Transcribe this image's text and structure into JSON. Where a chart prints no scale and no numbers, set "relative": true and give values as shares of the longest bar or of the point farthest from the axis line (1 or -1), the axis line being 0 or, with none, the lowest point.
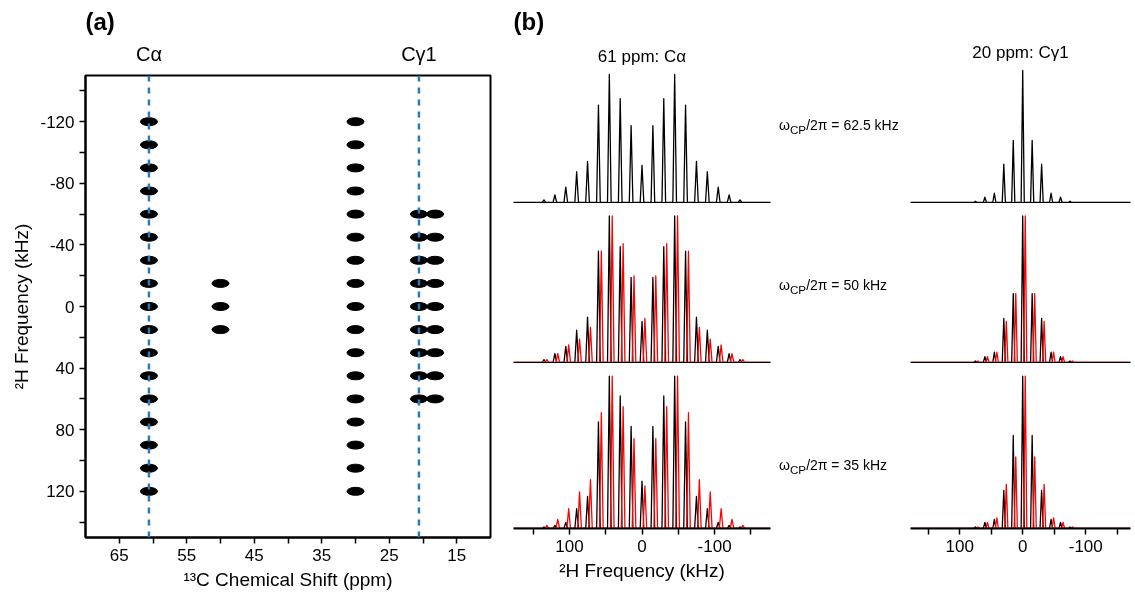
{
  "chart_data": [
    {
      "type": "scatter",
      "xlabel": "¹³C Chemical Shift (ppm)",
      "ylabel": "²H Frequency (kHz)",
      "annotations": [
        "(a)"
      ],
      "color": "#000000",
      "x": [
        60.6,
        60.6,
        60.6,
        60.6,
        60.6,
        60.6,
        60.6,
        60.6,
        60.6,
        60.6,
        60.6,
        60.6,
        60.6,
        60.6,
        60.6,
        60.6,
        60.6,
        50,
        50,
        50,
        30,
        30,
        30,
        30,
        30,
        30,
        30,
        30,
        30,
        30,
        30,
        30,
        30,
        30,
        30,
        30,
        30,
        20.6,
        20.6,
        20.6,
        20.6,
        20.6,
        20.6,
        20.6,
        20.6,
        20.6,
        18.2,
        18.2,
        18.2,
        18.2,
        18.2,
        18.2,
        18.2,
        18.2,
        18.2
      ],
      "values": [
        -120,
        -105,
        -90,
        -75,
        -60,
        -45,
        -30,
        -15,
        0,
        15,
        30,
        45,
        60,
        75,
        90,
        105,
        120,
        -15,
        0,
        15,
        -120,
        -105,
        -90,
        -75,
        -60,
        -45,
        -30,
        -15,
        0,
        15,
        30,
        45,
        60,
        75,
        90,
        105,
        120,
        -60,
        -45,
        -30,
        -15,
        0,
        15,
        30,
        45,
        60,
        -60,
        -45,
        -30,
        -15,
        0,
        15,
        30,
        45,
        60
      ],
      "xlim": [
        70,
        10
      ],
      "ylim": [
        150,
        -150
      ],
      "xticks": [
        65,
        {
          "value": 60,
          "label": null
        },
        55,
        {
          "value": 50,
          "label": null
        },
        45,
        {
          "value": 40,
          "label": null
        },
        35,
        {
          "value": 30,
          "label": null
        },
        25,
        {
          "value": 20,
          "label": null
        },
        15
      ],
      "yticks": [
        {
          "value": -140,
          "label": null
        },
        -120,
        {
          "value": -100,
          "label": null
        },
        -80,
        {
          "value": -60,
          "label": null
        },
        -40,
        {
          "value": -20,
          "label": null
        },
        0,
        {
          "value": 20,
          "label": null
        },
        40,
        {
          "value": 60,
          "label": null
        },
        80,
        {
          "value": 100,
          "label": null
        },
        120,
        {
          "value": 140,
          "label": null
        }
      ],
      "ref_lines": [
        {
          "axis": "x",
          "value": 60.6,
          "label": "Cα",
          "color": "#2b7bba",
          "line_style": "dashed"
        },
        {
          "axis": "x",
          "value": 20.6,
          "label": "Cγ1",
          "color": "#2b7bba",
          "line_style": "dashed"
        }
      ]
    },
    {
      "type": "line",
      "relative": true,
      "title": "61 ppm: Cα",
      "annotations": [
        "(b)",
        "ω$_{CP}$/2π = 62.5 kHz"
      ],
      "xlim": [
        177,
        -177
      ],
      "tick_labels": false,
      "series": [
        {
          "color": "#000000",
          "x": [
            177,
            137.5,
            135,
            132.5,
            122.5,
            120,
            117.5,
            107.5,
            105,
            102.5,
            92.5,
            90,
            87.5,
            77.5,
            75,
            72.5,
            62.5,
            60,
            57.5,
            47.5,
            45,
            42.5,
            32.5,
            30,
            27.5,
            17.5,
            15,
            12.5,
            2.5,
            0,
            -2.5,
            -12.5,
            -15,
            -17.5,
            -27.5,
            -30,
            -32.5,
            -42.5,
            -45,
            -47.5,
            -57.5,
            -60,
            -62.5,
            -72.5,
            -75,
            -77.5,
            -87.5,
            -90,
            -92.5,
            -102.5,
            -105,
            -107.5,
            -117.5,
            -120,
            -122.5,
            -132.5,
            -135,
            -137.5,
            -177
          ],
          "values": [
            0,
            0,
            0.02,
            0,
            0,
            0.06,
            0,
            0,
            0.12,
            0,
            0,
            0.24,
            0,
            0,
            0.32,
            0,
            0,
            0.76,
            0,
            0,
            1.0,
            0,
            0,
            0.81,
            0,
            0,
            0.6,
            0,
            0,
            0.29,
            0,
            0,
            0.6,
            0,
            0,
            0.81,
            0,
            0,
            1.0,
            0,
            0,
            0.76,
            0,
            0,
            0.32,
            0,
            0,
            0.24,
            0,
            0,
            0.12,
            0,
            0,
            0.06,
            0,
            0,
            0.02,
            0,
            0
          ]
        }
      ]
    },
    {
      "type": "line",
      "relative": true,
      "title": "20 ppm: Cγ1",
      "xlim": [
        178,
        -171
      ],
      "tick_labels": false,
      "series": [
        {
          "color": "#000000",
          "x": [
            178,
            77.5,
            75,
            72.5,
            62.5,
            60,
            57.5,
            47.5,
            45,
            42.5,
            32.5,
            30,
            27.5,
            17.5,
            15,
            12.5,
            2.5,
            0,
            -2.5,
            -12.5,
            -15,
            -17.5,
            -27.5,
            -30,
            -32.5,
            -42.5,
            -45,
            -47.5,
            -57.5,
            -60,
            -62.5,
            -72.5,
            -75,
            -77.5,
            -171
          ],
          "values": [
            0,
            0,
            0.01,
            0,
            0,
            0.04,
            0,
            0,
            0.07,
            0,
            0,
            0.29,
            0,
            0,
            0.47,
            0,
            0,
            1.0,
            0,
            0,
            0.47,
            0,
            0,
            0.29,
            0,
            0,
            0.07,
            0,
            0,
            0.04,
            0,
            0,
            0.01,
            0,
            0
          ]
        }
      ]
    },
    {
      "type": "line",
      "relative": true,
      "annotations": [
        "ω$_{CP}$/2π = 50 kHz"
      ],
      "xlim": [
        177,
        -177
      ],
      "tick_labels": false,
      "series": [
        {
          "color": "#000000",
          "x": [
            177,
            137.5,
            135,
            132.5,
            122.5,
            120,
            117.5,
            107.5,
            105,
            102.5,
            92.5,
            90,
            87.5,
            77.5,
            75,
            72.5,
            62.5,
            60,
            57.5,
            47.5,
            45,
            42.5,
            32.5,
            30,
            27.5,
            17.5,
            15,
            12.5,
            2.5,
            0,
            -2.5,
            -12.5,
            -15,
            -17.5,
            -27.5,
            -30,
            -32.5,
            -42.5,
            -45,
            -47.5,
            -57.5,
            -60,
            -62.5,
            -72.5,
            -75,
            -77.5,
            -87.5,
            -90,
            -92.5,
            -102.5,
            -105,
            -107.5,
            -117.5,
            -120,
            -122.5,
            -132.5,
            -135,
            -137.5,
            -177
          ],
          "values": [
            0,
            0,
            0.02,
            0,
            0,
            0.06,
            0,
            0,
            0.11,
            0,
            0,
            0.22,
            0,
            0,
            0.31,
            0,
            0,
            0.76,
            0,
            0,
            1.0,
            0,
            0,
            0.79,
            0,
            0,
            0.58,
            0,
            0,
            0.28,
            0,
            0,
            0.58,
            0,
            0,
            0.79,
            0,
            0,
            1.0,
            0,
            0,
            0.76,
            0,
            0,
            0.31,
            0,
            0,
            0.22,
            0,
            0,
            0.11,
            0,
            0,
            0.06,
            0,
            0,
            0.02,
            0,
            0
          ]
        },
        {
          "color": "#ff0000",
          "x": [
            177,
            133.5,
            131,
            128.5,
            118.5,
            116,
            113.5,
            103.5,
            101,
            98.5,
            88.5,
            86,
            83.5,
            73.5,
            71,
            68.5,
            58.5,
            56,
            53.5,
            43.5,
            41,
            38.5,
            28.5,
            26,
            23.5,
            13.5,
            11,
            8.5,
            -1.5,
            -4,
            -6.5,
            -16.5,
            -19,
            -21.5,
            -31.5,
            -34,
            -36.5,
            -46.5,
            -49,
            -51.5,
            -61.5,
            -64,
            -66.5,
            -76.5,
            -79,
            -81.5,
            -91.5,
            -94,
            -96.5,
            -106.5,
            -109,
            -111.5,
            -121.5,
            -124,
            -126.5,
            -136.5,
            -139,
            -141.5,
            -177
          ],
          "values": [
            0,
            0,
            0.02,
            0,
            0,
            0.06,
            0,
            0,
            0.12,
            0,
            0,
            0.16,
            0,
            0,
            0.24,
            0,
            0,
            0.76,
            0,
            0,
            1.0,
            0,
            0,
            0.81,
            0,
            0,
            0.59,
            0,
            0,
            0.3,
            0,
            0,
            0.59,
            0,
            0,
            0.81,
            0,
            0,
            1.0,
            0,
            0,
            0.76,
            0,
            0,
            0.24,
            0,
            0,
            0.16,
            0,
            0,
            0.12,
            0,
            0,
            0.06,
            0,
            0,
            0.02,
            0,
            0
          ]
        }
      ]
    },
    {
      "type": "line",
      "relative": true,
      "xlim": [
        178,
        -171
      ],
      "tick_labels": false,
      "series": [
        {
          "color": "#000000",
          "x": [
            178,
            77.5,
            75,
            72.5,
            62.5,
            60,
            57.5,
            47.5,
            45,
            42.5,
            32.5,
            30,
            27.5,
            17.5,
            15,
            12.5,
            2.5,
            0,
            -2.5,
            -12.5,
            -15,
            -17.5,
            -27.5,
            -30,
            -32.5,
            -42.5,
            -45,
            -47.5,
            -57.5,
            -60,
            -62.5,
            -72.5,
            -75,
            -77.5,
            -171
          ],
          "values": [
            0,
            0,
            0.01,
            0,
            0,
            0.04,
            0,
            0,
            0.07,
            0,
            0,
            0.3,
            0,
            0,
            0.47,
            0,
            0,
            1.0,
            0,
            0,
            0.47,
            0,
            0,
            0.3,
            0,
            0,
            0.07,
            0,
            0,
            0.04,
            0,
            0,
            0.01,
            0,
            0
          ]
        },
        {
          "color": "#ff0000",
          "x": [
            178,
            73.5,
            71,
            68.5,
            58.5,
            56,
            53.5,
            43.5,
            41,
            38.5,
            28.5,
            26,
            23.5,
            13.5,
            11,
            8.5,
            -1.5,
            -4,
            -6.5,
            -16.5,
            -19,
            -21.5,
            -31.5,
            -34,
            -36.5,
            -46.5,
            -49,
            -51.5,
            -61.5,
            -64,
            -66.5,
            -76.5,
            -79,
            -81.5,
            -171
          ],
          "values": [
            0,
            0,
            0.01,
            0,
            0,
            0.04,
            0,
            0,
            0.07,
            0,
            0,
            0.28,
            0,
            0,
            0.47,
            0,
            0,
            1.0,
            0,
            0,
            0.47,
            0,
            0,
            0.28,
            0,
            0,
            0.07,
            0,
            0,
            0.04,
            0,
            0,
            0.01,
            0,
            0
          ]
        }
      ]
    },
    {
      "type": "line",
      "relative": true,
      "annotations": [
        "ω$_{CP}$/2π = 35 kHz"
      ],
      "xlabel": "²H Frequency (kHz)",
      "xlim": [
        177,
        -177
      ],
      "xticks": [
        {
          "value": 150,
          "label": null
        },
        100,
        {
          "value": 50,
          "label": null
        },
        0,
        {
          "value": -50,
          "label": null
        },
        -100,
        {
          "value": -150,
          "label": null
        }
      ],
      "tick_labels": "x",
      "series": [
        {
          "color": "#000000",
          "x": [
            177,
            137.5,
            135,
            132.5,
            122.5,
            120,
            117.5,
            107.5,
            105,
            102.5,
            92.5,
            90,
            87.5,
            77.5,
            75,
            72.5,
            62.5,
            60,
            57.5,
            47.5,
            45,
            42.5,
            32.5,
            30,
            27.5,
            17.5,
            15,
            12.5,
            2.5,
            0,
            -2.5,
            -12.5,
            -15,
            -17.5,
            -27.5,
            -30,
            -32.5,
            -42.5,
            -45,
            -47.5,
            -57.5,
            -60,
            -62.5,
            -72.5,
            -75,
            -77.5,
            -87.5,
            -90,
            -92.5,
            -102.5,
            -105,
            -107.5,
            -117.5,
            -120,
            -122.5,
            -132.5,
            -135,
            -137.5,
            -177
          ],
          "values": [
            0,
            0,
            0.01,
            0,
            0,
            0.02,
            0,
            0,
            0.04,
            0,
            0,
            0.13,
            0,
            0,
            0.21,
            0,
            0,
            0.7,
            0,
            0,
            1.0,
            0,
            0,
            0.87,
            0,
            0,
            0.67,
            0,
            0,
            0.31,
            0,
            0,
            0.67,
            0,
            0,
            0.87,
            0,
            0,
            1.0,
            0,
            0,
            0.7,
            0,
            0,
            0.21,
            0,
            0,
            0.13,
            0,
            0,
            0.04,
            0,
            0,
            0.02,
            0,
            0,
            0.01,
            0,
            0
          ]
        },
        {
          "color": "#ff0000",
          "x": [
            177,
            133.5,
            131,
            128.5,
            118.5,
            116,
            113.5,
            103.5,
            101,
            98.5,
            88.5,
            86,
            83.5,
            73.5,
            71,
            68.5,
            58.5,
            56,
            53.5,
            43.5,
            41,
            38.5,
            28.5,
            26,
            23.5,
            13.5,
            11,
            8.5,
            -1.5,
            -4,
            -6.5,
            -16.5,
            -19,
            -21.5,
            -31.5,
            -34,
            -36.5,
            -46.5,
            -49,
            -51.5,
            -61.5,
            -64,
            -66.5,
            -76.5,
            -79,
            -81.5,
            -91.5,
            -94,
            -96.5,
            -106.5,
            -109,
            -111.5,
            -121.5,
            -124,
            -126.5,
            -136.5,
            -139,
            -141.5,
            -177
          ],
          "values": [
            0,
            0,
            0.02,
            0,
            0,
            0.06,
            0,
            0,
            0.13,
            0,
            0,
            0.24,
            0,
            0,
            0.32,
            0,
            0,
            0.76,
            0,
            0,
            1.0,
            0,
            0,
            0.8,
            0,
            0,
            0.59,
            0,
            0,
            0.28,
            0,
            0,
            0.59,
            0,
            0,
            0.8,
            0,
            0,
            1.0,
            0,
            0,
            0.76,
            0,
            0,
            0.32,
            0,
            0,
            0.24,
            0,
            0,
            0.13,
            0,
            0,
            0.06,
            0,
            0,
            0.02,
            0,
            0
          ]
        }
      ]
    },
    {
      "type": "line",
      "relative": true,
      "xlim": [
        178,
        -171
      ],
      "xticks": [
        {
          "value": 150,
          "label": null
        },
        100,
        {
          "value": 50,
          "label": null
        },
        0,
        {
          "value": -50,
          "label": null
        },
        -100,
        {
          "value": -150,
          "label": null
        }
      ],
      "tick_labels": "x",
      "series": [
        {
          "color": "#000000",
          "x": [
            178,
            77.5,
            75,
            72.5,
            62.5,
            60,
            57.5,
            47.5,
            45,
            42.5,
            32.5,
            30,
            27.5,
            17.5,
            15,
            12.5,
            2.5,
            0,
            -2.5,
            -12.5,
            -15,
            -17.5,
            -27.5,
            -30,
            -32.5,
            -42.5,
            -45,
            -47.5,
            -57.5,
            -60,
            -62.5,
            -72.5,
            -75,
            -77.5,
            -171
          ],
          "values": [
            0,
            0,
            0.01,
            0,
            0,
            0.04,
            0,
            0,
            0.06,
            0,
            0,
            0.25,
            0,
            0,
            0.61,
            0,
            0,
            1.0,
            0,
            0,
            0.61,
            0,
            0,
            0.25,
            0,
            0,
            0.06,
            0,
            0,
            0.04,
            0,
            0,
            0.01,
            0,
            0
          ]
        },
        {
          "color": "#ff0000",
          "x": [
            178,
            73.5,
            71,
            68.5,
            58.5,
            56,
            53.5,
            43.5,
            41,
            38.5,
            28.5,
            26,
            23.5,
            13.5,
            11,
            8.5,
            -1.5,
            -4,
            -6.5,
            -16.5,
            -19,
            -21.5,
            -31.5,
            -34,
            -36.5,
            -46.5,
            -49,
            -51.5,
            -61.5,
            -64,
            -66.5,
            -76.5,
            -79,
            -81.5,
            -171
          ],
          "values": [
            0,
            0,
            0.01,
            0,
            0,
            0.04,
            0,
            0,
            0.07,
            0,
            0,
            0.29,
            0,
            0,
            0.47,
            0,
            0,
            1.0,
            0,
            0,
            0.47,
            0,
            0,
            0.29,
            0,
            0,
            0.07,
            0,
            0,
            0.04,
            0,
            0,
            0.01,
            0,
            0
          ]
        }
      ]
    }
  ]
}
